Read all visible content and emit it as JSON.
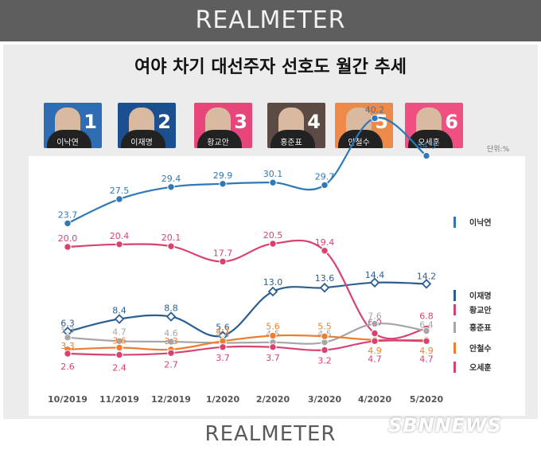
{
  "brand": "REALMETER",
  "brand_bottom": "REALMETER",
  "watermark": "SBNNEWS",
  "unit_label": "단위:%",
  "candidates": [
    {
      "name": "이낙연",
      "number": "1",
      "bg": "#2e6db4"
    },
    {
      "name": "이재명",
      "number": "2",
      "bg": "#1b4f8f"
    },
    {
      "name": "황교안",
      "number": "3",
      "bg": "#e8457a"
    },
    {
      "name": "홍준표",
      "number": "4",
      "bg": "#5c4a44"
    },
    {
      "name": "안철수",
      "number": "5",
      "bg": "#ee8a49"
    },
    {
      "name": "오세훈",
      "number": "6",
      "bg": "#f04f82"
    }
  ],
  "chart_data": {
    "type": "line",
    "title": "여야 차기 대선주자 선호도 월간 추세",
    "categories": [
      "10/2019",
      "11/2019",
      "12/2019",
      "1/2020",
      "2/2020",
      "3/2020",
      "4/2020",
      "5/2020"
    ],
    "legend_position": "right",
    "grid": false,
    "series": [
      {
        "name": "이낙연",
        "color": "#2e78b8",
        "values": [
          23.7,
          27.5,
          29.4,
          29.9,
          30.1,
          29.7,
          40.2,
          34.3
        ],
        "labels": [
          "23.7",
          "27.5",
          "29.4",
          "29.9",
          "30.1",
          "29.7",
          "40.2",
          "34.3"
        ]
      },
      {
        "name": "이재명",
        "color": "#2c5f8f",
        "values": [
          6.3,
          8.4,
          8.8,
          5.6,
          13.0,
          13.6,
          14.4,
          14.2
        ],
        "labels": [
          "6.3",
          "8.4",
          "8.8",
          "5.6",
          "13.0",
          "13.6",
          "14.4",
          "14.2"
        ]
      },
      {
        "name": "황교안",
        "color": "#d9426f",
        "values": [
          20.0,
          20.4,
          20.1,
          17.7,
          20.5,
          19.4,
          6.0,
          6.8
        ],
        "labels": [
          "20.0",
          "20.4",
          "20.1",
          "17.7",
          "20.5",
          "19.4",
          "6.0",
          "6.8"
        ]
      },
      {
        "name": "홍준표",
        "color": "#a6a6a6",
        "values": [
          5.3,
          4.7,
          4.6,
          4.4,
          4.5,
          4.5,
          7.6,
          6.4
        ],
        "labels": [
          "5.3",
          "4.7",
          "4.6",
          "4.4",
          "4.5",
          "4.5",
          "7.6",
          "6.4"
        ]
      },
      {
        "name": "안철수",
        "color": "#ee7d2f",
        "values": [
          3.3,
          3.6,
          3.3,
          4.7,
          5.6,
          5.5,
          4.9,
          4.9
        ],
        "labels": [
          "3.3",
          "3.6",
          "3.3",
          "4.7",
          "5.6",
          "5.5",
          "4.9",
          "4.9"
        ]
      },
      {
        "name": "오세훈",
        "color": "#d9426f",
        "values": [
          2.6,
          2.4,
          2.7,
          3.7,
          3.7,
          3.2,
          4.7,
          4.7
        ],
        "labels": [
          "2.6",
          "2.4",
          "2.7",
          "3.7",
          "3.7",
          "3.2",
          "4.7",
          "4.7"
        ]
      }
    ]
  }
}
